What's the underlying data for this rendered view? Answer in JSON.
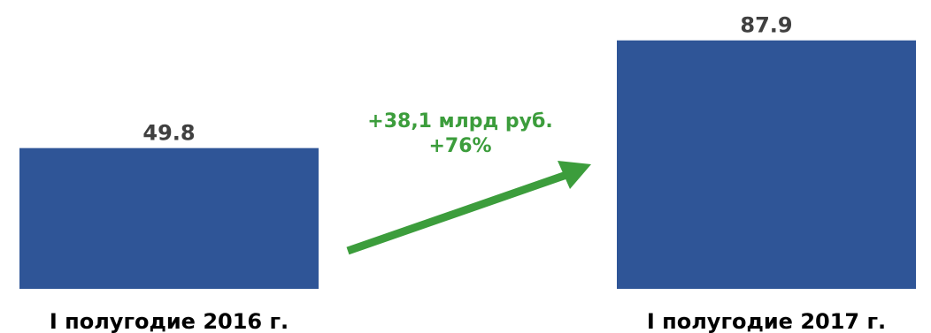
{
  "chart_data": {
    "type": "bar",
    "title": "",
    "categories": [
      "I полугодие 2016 г.",
      "I полугодие 2017 г."
    ],
    "values": [
      49.8,
      87.9
    ],
    "value_labels": [
      "49.8",
      "87.9"
    ],
    "ylim": [
      0,
      100
    ],
    "grid": false,
    "legend": "none",
    "colors": {
      "bar": "#2f5597",
      "value_label": "#404040",
      "category_label": "#000000",
      "annotation": "#3c9d3c",
      "arrow": "#3c9d3c"
    },
    "annotations": {
      "change_abs": "+38,1 млрд руб.",
      "change_pct": "+76%"
    }
  }
}
